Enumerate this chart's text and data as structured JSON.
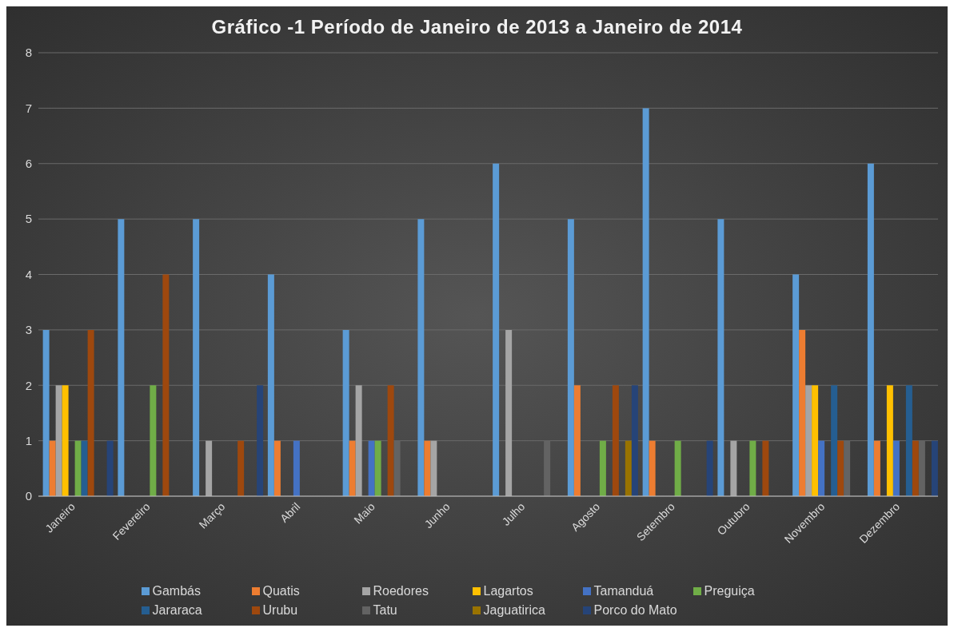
{
  "chart_data": {
    "type": "bar",
    "title": "Gráfico -1 Período de Janeiro de 2013 a Janeiro de 2014",
    "categories": [
      "Janeiro",
      "Fevereiro",
      "Março",
      "Abril",
      "Maio",
      "Junho",
      "Julho",
      "Agosto",
      "Setembro",
      "Outubro",
      "Novembro",
      "Dezembro"
    ],
    "series": [
      {
        "name": "Gambás",
        "color": "#5b9bd5",
        "values": [
          3,
          5,
          5,
          4,
          3,
          5,
          6,
          5,
          7,
          5,
          4,
          6
        ]
      },
      {
        "name": "Quatis",
        "color": "#ed7d31",
        "values": [
          1,
          0,
          0,
          1,
          1,
          1,
          0,
          2,
          1,
          0,
          3,
          1
        ]
      },
      {
        "name": "Roedores",
        "color": "#a5a5a5",
        "values": [
          2,
          0,
          1,
          0,
          2,
          1,
          3,
          0,
          0,
          1,
          2,
          0
        ]
      },
      {
        "name": "Lagartos",
        "color": "#ffc000",
        "values": [
          2,
          0,
          0,
          0,
          0,
          0,
          0,
          0,
          0,
          0,
          2,
          2
        ]
      },
      {
        "name": "Tamanduá",
        "color": "#4472c4",
        "values": [
          0,
          0,
          0,
          1,
          1,
          0,
          0,
          0,
          0,
          0,
          1,
          1
        ]
      },
      {
        "name": "Preguiça",
        "color": "#70ad47",
        "values": [
          1,
          2,
          0,
          0,
          1,
          0,
          0,
          1,
          1,
          1,
          0,
          0
        ]
      },
      {
        "name": "Jararaca",
        "color": "#255e91",
        "values": [
          1,
          0,
          0,
          0,
          0,
          0,
          0,
          0,
          0,
          0,
          2,
          2
        ]
      },
      {
        "name": "Urubu",
        "color": "#9e480e",
        "values": [
          3,
          4,
          1,
          0,
          2,
          0,
          0,
          2,
          0,
          1,
          1,
          1
        ]
      },
      {
        "name": "Tatu",
        "color": "#636363",
        "values": [
          0,
          0,
          0,
          0,
          1,
          0,
          1,
          0,
          0,
          0,
          1,
          1
        ]
      },
      {
        "name": "Jaguatirica",
        "color": "#997300",
        "values": [
          0,
          0,
          0,
          0,
          0,
          0,
          0,
          1,
          0,
          0,
          0,
          0
        ]
      },
      {
        "name": "Porco do Mato",
        "color": "#264478",
        "values": [
          1,
          0,
          2,
          0,
          0,
          0,
          0,
          2,
          1,
          0,
          0,
          1
        ]
      }
    ],
    "ylim": [
      0,
      8
    ],
    "yticks": [
      0,
      1,
      2,
      3,
      4,
      5,
      6,
      7,
      8
    ],
    "grid": "y",
    "legend": "bottom"
  }
}
